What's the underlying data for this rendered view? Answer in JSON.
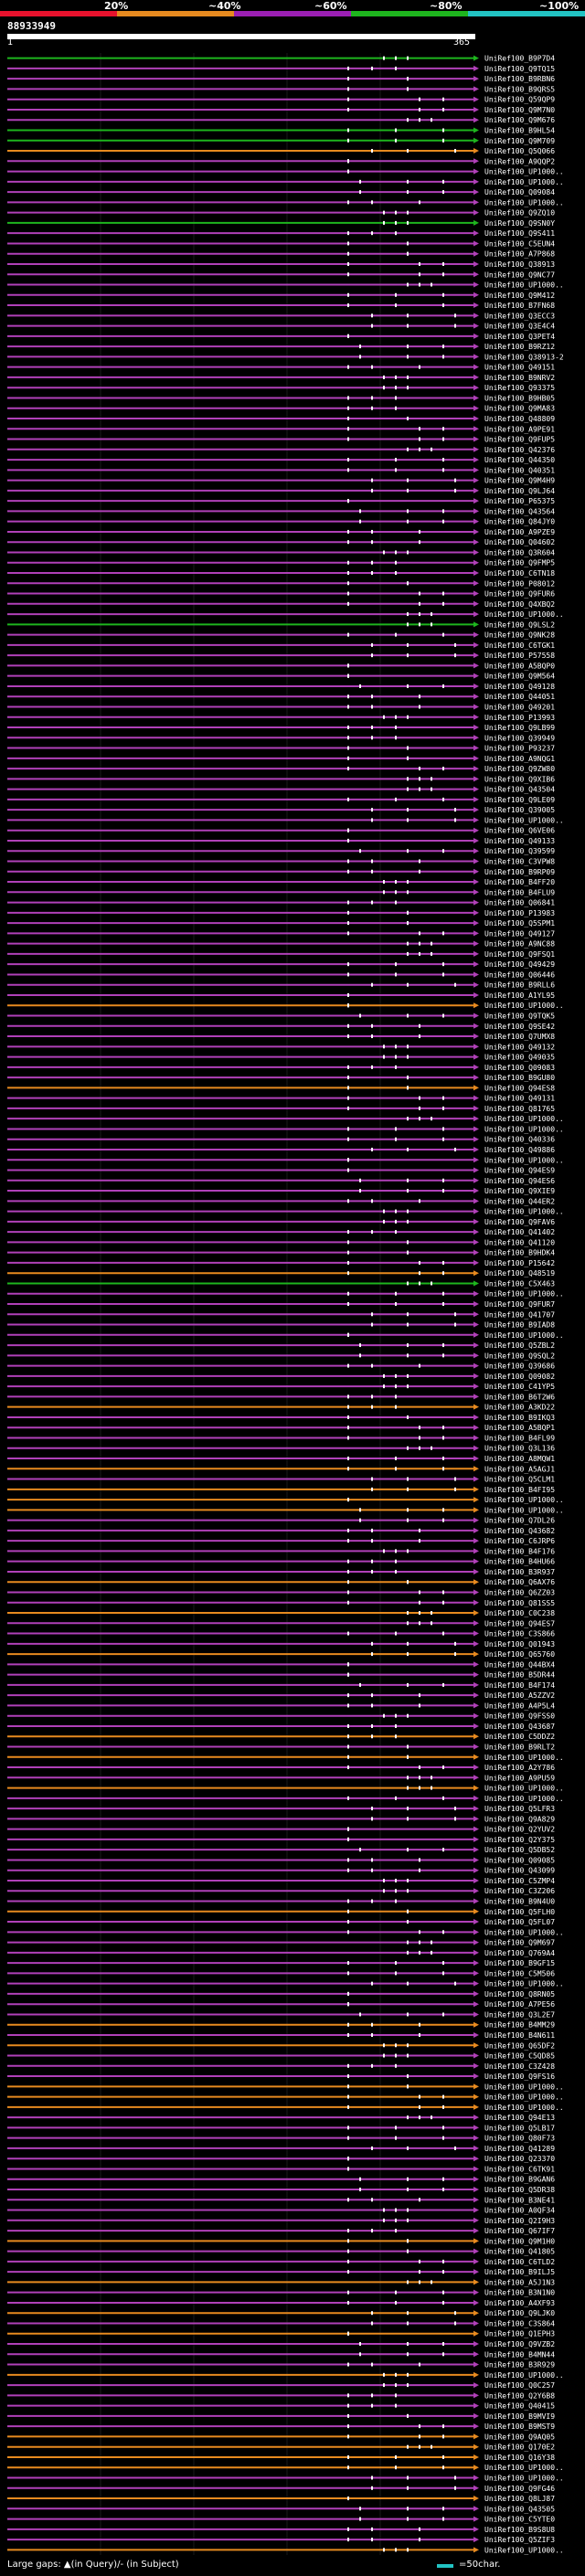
{
  "legend": {
    "items": [
      {
        "label": "20%",
        "color": "#e8122d"
      },
      {
        "label": "~40%",
        "color": "#e78a1f"
      },
      {
        "label": "~60%",
        "color": "#9b1fb3"
      },
      {
        "label": "~80%",
        "color": "#1eb51e"
      },
      {
        "label": "~100%",
        "color": "#22c3c3"
      }
    ]
  },
  "query": {
    "id": "88933949",
    "start": "1",
    "end": "365"
  },
  "hits": [
    {
      "name": "UniRef100_B9P7D4",
      "color": "#1eb51e"
    },
    {
      "name": "UniRef100_Q9TQ15",
      "color": "#b040b8"
    },
    {
      "name": "UniRef100_B9RBN6",
      "color": "#b040b8"
    },
    {
      "name": "UniRef100_B9QRS5",
      "color": "#b040b8"
    },
    {
      "name": "UniRef100_Q59QP9",
      "color": "#b040b8"
    },
    {
      "name": "UniRef100_Q9M7N0",
      "color": "#b040b8"
    },
    {
      "name": "UniRef100_Q9M676",
      "color": "#b040b8"
    },
    {
      "name": "UniRef100_B9HL54",
      "color": "#1eb51e"
    },
    {
      "name": "UniRef100_Q9M709",
      "color": "#1eb51e"
    },
    {
      "name": "UniRef100_Q5Q066",
      "color": "#e78a1f"
    },
    {
      "name": "UniRef100_A9QQP2",
      "color": "#b040b8"
    },
    {
      "name": "UniRef100_UP1000..",
      "color": "#b040b8"
    },
    {
      "name": "UniRef100_UP1000..",
      "color": "#b040b8"
    },
    {
      "name": "UniRef100_Q09084",
      "color": "#b040b8"
    },
    {
      "name": "UniRef100_UP1000..",
      "color": "#b040b8"
    },
    {
      "name": "UniRef100_Q9ZQ10",
      "color": "#b040b8"
    },
    {
      "name": "UniRef100_Q9SN0Y",
      "color": "#1eb51e"
    },
    {
      "name": "UniRef100_Q9S411",
      "color": "#b040b8"
    },
    {
      "name": "UniRef100_C5EUN4",
      "color": "#b040b8"
    },
    {
      "name": "UniRef100_A7P868",
      "color": "#b040b8"
    },
    {
      "name": "UniRef100_Q38913",
      "color": "#b040b8"
    },
    {
      "name": "UniRef100_Q9NC77",
      "color": "#b040b8"
    },
    {
      "name": "UniRef100_UP1000..",
      "color": "#b040b8"
    },
    {
      "name": "UniRef100_Q9M412",
      "color": "#b040b8"
    },
    {
      "name": "UniRef100_B7FN68",
      "color": "#b040b8"
    },
    {
      "name": "UniRef100_Q3ECC3",
      "color": "#b040b8"
    },
    {
      "name": "UniRef100_Q3E4C4",
      "color": "#b040b8"
    },
    {
      "name": "UniRef100_Q3PET4",
      "color": "#b040b8"
    },
    {
      "name": "UniRef100_B9RZ12",
      "color": "#b040b8"
    },
    {
      "name": "UniRef100_Q38913-2",
      "color": "#b040b8"
    },
    {
      "name": "UniRef100_Q49151",
      "color": "#b040b8"
    },
    {
      "name": "UniRef100_B9NRV2",
      "color": "#b040b8"
    },
    {
      "name": "UniRef100_Q93375",
      "color": "#b040b8"
    },
    {
      "name": "UniRef100_B9HB05",
      "color": "#b040b8"
    },
    {
      "name": "UniRef100_Q9MA83",
      "color": "#b040b8"
    },
    {
      "name": "UniRef100_Q48809",
      "color": "#b040b8"
    },
    {
      "name": "UniRef100_A9PE91",
      "color": "#b040b8"
    },
    {
      "name": "UniRef100_Q9FUP5",
      "color": "#b040b8"
    },
    {
      "name": "UniRef100_Q42376",
      "color": "#b040b8"
    },
    {
      "name": "UniRef100_Q44350",
      "color": "#b040b8"
    },
    {
      "name": "UniRef100_Q40351",
      "color": "#b040b8"
    },
    {
      "name": "UniRef100_Q9M4H9",
      "color": "#b040b8"
    },
    {
      "name": "UniRef100_Q9LJ64",
      "color": "#b040b8"
    },
    {
      "name": "UniRef100_P65375",
      "color": "#b040b8"
    },
    {
      "name": "UniRef100_Q43564",
      "color": "#b040b8"
    },
    {
      "name": "UniRef100_Q84JY0",
      "color": "#b040b8"
    },
    {
      "name": "UniRef100_A9PZE9",
      "color": "#b040b8"
    },
    {
      "name": "UniRef100_Q04602",
      "color": "#b040b8"
    },
    {
      "name": "UniRef100_Q3R604",
      "color": "#b040b8"
    },
    {
      "name": "UniRef100_Q9FMP5",
      "color": "#b040b8"
    },
    {
      "name": "UniRef100_C6TN18",
      "color": "#b040b8"
    },
    {
      "name": "UniRef100_P08012",
      "color": "#b040b8"
    },
    {
      "name": "UniRef100_Q9FUR6",
      "color": "#b040b8"
    },
    {
      "name": "UniRef100_Q4XBQ2",
      "color": "#b040b8"
    },
    {
      "name": "UniRef100_UP1000..",
      "color": "#b040b8"
    },
    {
      "name": "UniRef100_Q9LSL2",
      "color": "#1eb51e"
    },
    {
      "name": "UniRef100_Q9NK28",
      "color": "#b040b8"
    },
    {
      "name": "UniRef100_C6TGK1",
      "color": "#b040b8"
    },
    {
      "name": "UniRef100_P57558",
      "color": "#b040b8"
    },
    {
      "name": "UniRef100_A5BQP0",
      "color": "#b040b8"
    },
    {
      "name": "UniRef100_Q9M564",
      "color": "#b040b8"
    },
    {
      "name": "UniRef100_Q49128",
      "color": "#b040b8"
    },
    {
      "name": "UniRef100_Q44051",
      "color": "#b040b8"
    },
    {
      "name": "UniRef100_Q49201",
      "color": "#b040b8"
    },
    {
      "name": "UniRef100_P13993",
      "color": "#b040b8"
    },
    {
      "name": "UniRef100_Q9LB99",
      "color": "#b040b8"
    },
    {
      "name": "UniRef100_Q39949",
      "color": "#b040b8"
    },
    {
      "name": "UniRef100_P93237",
      "color": "#b040b8"
    },
    {
      "name": "UniRef100_A9NQG1",
      "color": "#b040b8"
    },
    {
      "name": "UniRef100_Q9ZW80",
      "color": "#b040b8"
    },
    {
      "name": "UniRef100_Q9XIB6",
      "color": "#b040b8"
    },
    {
      "name": "UniRef100_Q43504",
      "color": "#b040b8"
    },
    {
      "name": "UniRef100_Q9LE09",
      "color": "#b040b8"
    },
    {
      "name": "UniRef100_Q39005",
      "color": "#b040b8"
    },
    {
      "name": "UniRef100_UP1000..",
      "color": "#b040b8"
    },
    {
      "name": "UniRef100_Q6VE06",
      "color": "#b040b8"
    },
    {
      "name": "UniRef100_Q49133",
      "color": "#b040b8"
    },
    {
      "name": "UniRef100_Q39599",
      "color": "#b040b8"
    },
    {
      "name": "UniRef100_C3VPW8",
      "color": "#b040b8"
    },
    {
      "name": "UniRef100_B9RP09",
      "color": "#b040b8"
    },
    {
      "name": "UniRef100_B4FF20",
      "color": "#b040b8"
    },
    {
      "name": "UniRef100_B4FLU9",
      "color": "#b040b8"
    },
    {
      "name": "UniRef100_Q06841",
      "color": "#b040b8"
    },
    {
      "name": "UniRef100_P13983",
      "color": "#b040b8"
    },
    {
      "name": "UniRef100_Q5SPM1",
      "color": "#b040b8"
    },
    {
      "name": "UniRef100_Q49127",
      "color": "#b040b8"
    },
    {
      "name": "UniRef100_A9NC88",
      "color": "#b040b8"
    },
    {
      "name": "UniRef100_Q9FSQ1",
      "color": "#b040b8"
    },
    {
      "name": "UniRef100_Q49429",
      "color": "#b040b8"
    },
    {
      "name": "UniRef100_Q06446",
      "color": "#b040b8"
    },
    {
      "name": "UniRef100_B9RLL6",
      "color": "#b040b8"
    },
    {
      "name": "UniRef100_A1YL95",
      "color": "#b040b8"
    },
    {
      "name": "UniRef100_UP1000..",
      "color": "#e78a1f"
    },
    {
      "name": "UniRef100_Q9TQK5",
      "color": "#b040b8"
    },
    {
      "name": "UniRef100_Q9SE42",
      "color": "#b040b8"
    },
    {
      "name": "UniRef100_Q7UMX8",
      "color": "#b040b8"
    },
    {
      "name": "UniRef100_Q49132",
      "color": "#b040b8"
    },
    {
      "name": "UniRef100_Q49035",
      "color": "#b040b8"
    },
    {
      "name": "UniRef100_Q09083",
      "color": "#b040b8"
    },
    {
      "name": "UniRef100_B9GU80",
      "color": "#b040b8"
    },
    {
      "name": "UniRef100_Q94ES8",
      "color": "#e78a1f"
    },
    {
      "name": "UniRef100_Q49131",
      "color": "#b040b8"
    },
    {
      "name": "UniRef100_Q81765",
      "color": "#b040b8"
    },
    {
      "name": "UniRef100_UP1000..",
      "color": "#b040b8"
    },
    {
      "name": "UniRef100_UP1000..",
      "color": "#b040b8"
    },
    {
      "name": "UniRef100_Q40336",
      "color": "#b040b8"
    },
    {
      "name": "UniRef100_Q49886",
      "color": "#b040b8"
    },
    {
      "name": "UniRef100_UP1000..",
      "color": "#b040b8"
    },
    {
      "name": "UniRef100_Q94ES9",
      "color": "#b040b8"
    },
    {
      "name": "UniRef100_Q94ES6",
      "color": "#b040b8"
    },
    {
      "name": "UniRef100_Q9XIE9",
      "color": "#b040b8"
    },
    {
      "name": "UniRef100_Q44ER2",
      "color": "#b040b8"
    },
    {
      "name": "UniRef100_UP1000..",
      "color": "#b040b8"
    },
    {
      "name": "UniRef100_Q9FAV6",
      "color": "#b040b8"
    },
    {
      "name": "UniRef100_Q41402",
      "color": "#b040b8"
    },
    {
      "name": "UniRef100_Q41120",
      "color": "#b040b8"
    },
    {
      "name": "UniRef100_B9HDK4",
      "color": "#b040b8"
    },
    {
      "name": "UniRef100_P15642",
      "color": "#b040b8"
    },
    {
      "name": "UniRef100_Q48519",
      "color": "#e78a1f"
    },
    {
      "name": "UniRef100_C5X463",
      "color": "#1eb51e"
    },
    {
      "name": "UniRef100_UP1000..",
      "color": "#b040b8"
    },
    {
      "name": "UniRef100_Q9FUR7",
      "color": "#b040b8"
    },
    {
      "name": "UniRef100_Q41707",
      "color": "#b040b8"
    },
    {
      "name": "UniRef100_B9IAD8",
      "color": "#b040b8"
    },
    {
      "name": "UniRef100_UP1000..",
      "color": "#b040b8"
    },
    {
      "name": "UniRef100_Q5ZBL2",
      "color": "#b040b8"
    },
    {
      "name": "UniRef100_Q9SQL2",
      "color": "#b040b8"
    },
    {
      "name": "UniRef100_Q39686",
      "color": "#b040b8"
    },
    {
      "name": "UniRef100_Q09082",
      "color": "#b040b8"
    },
    {
      "name": "UniRef100_C41YP5",
      "color": "#b040b8"
    },
    {
      "name": "UniRef100_B6T2W6",
      "color": "#b040b8"
    },
    {
      "name": "UniRef100_A3KD22",
      "color": "#e78a1f"
    },
    {
      "name": "UniRef100_B9IKQ3",
      "color": "#b040b8"
    },
    {
      "name": "UniRef100_A5BQP1",
      "color": "#b040b8"
    },
    {
      "name": "UniRef100_B4FL99",
      "color": "#b040b8"
    },
    {
      "name": "UniRef100_Q3L136",
      "color": "#b040b8"
    },
    {
      "name": "UniRef100_A8MQW1",
      "color": "#b040b8"
    },
    {
      "name": "UniRef100_A5AGJ1",
      "color": "#e78a1f"
    },
    {
      "name": "UniRef100_Q5CLM1",
      "color": "#b040b8"
    },
    {
      "name": "UniRef100_B4FI95",
      "color": "#e78a1f"
    },
    {
      "name": "UniRef100_UP1000..",
      "color": "#e78a1f"
    },
    {
      "name": "UniRef100_UP1000..",
      "color": "#e78a1f"
    },
    {
      "name": "UniRef100_Q7DL26",
      "color": "#b040b8"
    },
    {
      "name": "UniRef100_Q43682",
      "color": "#b040b8"
    },
    {
      "name": "UniRef100_C6JRP6",
      "color": "#b040b8"
    },
    {
      "name": "UniRef100_B4F176",
      "color": "#b040b8"
    },
    {
      "name": "UniRef100_B4HU66",
      "color": "#b040b8"
    },
    {
      "name": "UniRef100_B3R937",
      "color": "#b040b8"
    },
    {
      "name": "UniRef100_Q6AX76",
      "color": "#e78a1f"
    },
    {
      "name": "UniRef100_Q6ZZ03",
      "color": "#b040b8"
    },
    {
      "name": "UniRef100_Q81SS5",
      "color": "#b040b8"
    },
    {
      "name": "UniRef100_C0C238",
      "color": "#e78a1f"
    },
    {
      "name": "UniRef100_Q94ES7",
      "color": "#b040b8"
    },
    {
      "name": "UniRef100_C3S866",
      "color": "#b040b8"
    },
    {
      "name": "UniRef100_Q01943",
      "color": "#b040b8"
    },
    {
      "name": "UniRef100_Q65760",
      "color": "#e78a1f"
    },
    {
      "name": "UniRef100_Q44BX4",
      "color": "#b040b8"
    },
    {
      "name": "UniRef100_B5DR44",
      "color": "#b040b8"
    },
    {
      "name": "UniRef100_B4F174",
      "color": "#b040b8"
    },
    {
      "name": "UniRef100_A5ZZV2",
      "color": "#b040b8"
    },
    {
      "name": "UniRef100_A4P5L4",
      "color": "#b040b8"
    },
    {
      "name": "UniRef100_Q9FSS0",
      "color": "#b040b8"
    },
    {
      "name": "UniRef100_Q43687",
      "color": "#b040b8"
    },
    {
      "name": "UniRef100_C5DDZ2",
      "color": "#e78a1f"
    },
    {
      "name": "UniRef100_B9RLT2",
      "color": "#b040b8"
    },
    {
      "name": "UniRef100_UP1000..",
      "color": "#e78a1f"
    },
    {
      "name": "UniRef100_A2Y786",
      "color": "#b040b8"
    },
    {
      "name": "UniRef100_A9PU59",
      "color": "#b040b8"
    },
    {
      "name": "UniRef100_UP1000..",
      "color": "#e78a1f"
    },
    {
      "name": "UniRef100_UP1000..",
      "color": "#b040b8"
    },
    {
      "name": "UniRef100_Q5LFR3",
      "color": "#b040b8"
    },
    {
      "name": "UniRef100_Q9A829",
      "color": "#b040b8"
    },
    {
      "name": "UniRef100_Q2YUV2",
      "color": "#b040b8"
    },
    {
      "name": "UniRef100_Q2Y375",
      "color": "#b040b8"
    },
    {
      "name": "UniRef100_Q5DB52",
      "color": "#b040b8"
    },
    {
      "name": "UniRef100_Q09085",
      "color": "#b040b8"
    },
    {
      "name": "UniRef100_Q43099",
      "color": "#b040b8"
    },
    {
      "name": "UniRef100_C5ZMP4",
      "color": "#b040b8"
    },
    {
      "name": "UniRef100_C3Z206",
      "color": "#b040b8"
    },
    {
      "name": "UniRef100_B9N4U0",
      "color": "#b040b8"
    },
    {
      "name": "UniRef100_Q5FLH0",
      "color": "#e78a1f"
    },
    {
      "name": "UniRef100_Q5FL07",
      "color": "#b040b8"
    },
    {
      "name": "UniRef100_UP1000..",
      "color": "#b040b8"
    },
    {
      "name": "UniRef100_Q9M697",
      "color": "#b040b8"
    },
    {
      "name": "UniRef100_Q769A4",
      "color": "#b040b8"
    },
    {
      "name": "UniRef100_B9GF15",
      "color": "#b040b8"
    },
    {
      "name": "UniRef100_C5M506",
      "color": "#b040b8"
    },
    {
      "name": "UniRef100_UP1000..",
      "color": "#b040b8"
    },
    {
      "name": "UniRef100_Q8RN05",
      "color": "#b040b8"
    },
    {
      "name": "UniRef100_A7PE56",
      "color": "#b040b8"
    },
    {
      "name": "UniRef100_Q3L2E7",
      "color": "#b040b8"
    },
    {
      "name": "UniRef100_B4MM29",
      "color": "#e78a1f"
    },
    {
      "name": "UniRef100_B4N611",
      "color": "#b040b8"
    },
    {
      "name": "UniRef100_Q65DF2",
      "color": "#e78a1f"
    },
    {
      "name": "UniRef100_C5QD85",
      "color": "#b040b8"
    },
    {
      "name": "UniRef100_C3Z428",
      "color": "#b040b8"
    },
    {
      "name": "UniRef100_Q9FS16",
      "color": "#b040b8"
    },
    {
      "name": "UniRef100_UP1000..",
      "color": "#e78a1f"
    },
    {
      "name": "UniRef100_UP1000..",
      "color": "#e78a1f"
    },
    {
      "name": "UniRef100_UP1000..",
      "color": "#e78a1f"
    },
    {
      "name": "UniRef100_Q94E13",
      "color": "#b040b8"
    },
    {
      "name": "UniRef100_Q5LB17",
      "color": "#b040b8"
    },
    {
      "name": "UniRef100_Q80F73",
      "color": "#b040b8"
    },
    {
      "name": "UniRef100_Q41289",
      "color": "#b040b8"
    },
    {
      "name": "UniRef100_Q23370",
      "color": "#b040b8"
    },
    {
      "name": "UniRef100_C6TK91",
      "color": "#b040b8"
    },
    {
      "name": "UniRef100_B9GAN6",
      "color": "#b040b8"
    },
    {
      "name": "UniRef100_Q5DR38",
      "color": "#b040b8"
    },
    {
      "name": "UniRef100_B3NE41",
      "color": "#b040b8"
    },
    {
      "name": "UniRef100_A0QF34",
      "color": "#b040b8"
    },
    {
      "name": "UniRef100_Q2I9H3",
      "color": "#b040b8"
    },
    {
      "name": "UniRef100_Q67IF7",
      "color": "#b040b8"
    },
    {
      "name": "UniRef100_Q9M1H0",
      "color": "#e78a1f"
    },
    {
      "name": "UniRef100_Q41805",
      "color": "#b040b8"
    },
    {
      "name": "UniRef100_C6TLD2",
      "color": "#b040b8"
    },
    {
      "name": "UniRef100_B9ILJ5",
      "color": "#b040b8"
    },
    {
      "name": "UniRef100_A5J1N3",
      "color": "#e78a1f"
    },
    {
      "name": "UniRef100_B3N1N0",
      "color": "#b040b8"
    },
    {
      "name": "UniRef100_A4XF93",
      "color": "#b040b8"
    },
    {
      "name": "UniRef100_Q9LJK0",
      "color": "#e78a1f"
    },
    {
      "name": "UniRef100_C3S864",
      "color": "#b040b8"
    },
    {
      "name": "UniRef100_Q1EPH3",
      "color": "#e78a1f"
    },
    {
      "name": "UniRef100_Q9VZB2",
      "color": "#b040b8"
    },
    {
      "name": "UniRef100_B4MN44",
      "color": "#b040b8"
    },
    {
      "name": "UniRef100_B3R929",
      "color": "#b040b8"
    },
    {
      "name": "UniRef100_UP1000..",
      "color": "#e78a1f"
    },
    {
      "name": "UniRef100_Q0C257",
      "color": "#b040b8"
    },
    {
      "name": "UniRef100_Q2Y6B8",
      "color": "#b040b8"
    },
    {
      "name": "UniRef100_Q40415",
      "color": "#b040b8"
    },
    {
      "name": "UniRef100_B9MVI9",
      "color": "#b040b8"
    },
    {
      "name": "UniRef100_B9MST9",
      "color": "#b040b8"
    },
    {
      "name": "UniRef100_Q9AQ05",
      "color": "#e78a1f"
    },
    {
      "name": "UniRef100_Q170E2",
      "color": "#e78a1f"
    },
    {
      "name": "UniRef100_Q16Y38",
      "color": "#e78a1f"
    },
    {
      "name": "UniRef100_UP1000..",
      "color": "#e78a1f"
    },
    {
      "name": "UniRef100_UP1000..",
      "color": "#b040b8"
    },
    {
      "name": "UniRef100_Q9FG46",
      "color": "#b040b8"
    },
    {
      "name": "UniRef100_Q8LJ87",
      "color": "#e78a1f"
    },
    {
      "name": "UniRef100_Q43505",
      "color": "#b040b8"
    },
    {
      "name": "UniRef100_C5YTE0",
      "color": "#b040b8"
    },
    {
      "name": "UniRef100_B9S8U8",
      "color": "#b040b8"
    },
    {
      "name": "UniRef100_Q5ZIF3",
      "color": "#b040b8"
    },
    {
      "name": "UniRef100_UP1000..",
      "color": "#e78a1f"
    }
  ],
  "footer": {
    "gaps_text": "Large gaps: ▲(in Query)/- (in Subject)",
    "scale_text": "=50char."
  }
}
